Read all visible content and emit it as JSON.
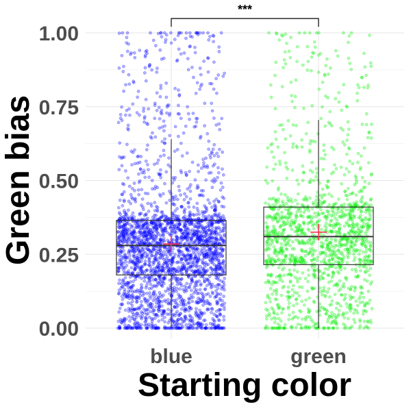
{
  "chart_data": {
    "type": "box",
    "xlabel": "Starting color",
    "ylabel": "Green bias",
    "ylim": [
      0,
      1
    ],
    "yticks": [
      "0.00",
      "0.25",
      "0.50",
      "0.75",
      "1.00"
    ],
    "categories": [
      "blue",
      "green"
    ],
    "boxes": [
      {
        "category": "blue",
        "color": "#0000ff",
        "q1": 0.18,
        "median": 0.28,
        "q3": 0.365,
        "whisker_low": 0.0,
        "whisker_high": 0.64,
        "mean": 0.285,
        "n_points": 2600
      },
      {
        "category": "green",
        "color": "#00ee00",
        "q1": 0.215,
        "median": 0.31,
        "q3": 0.41,
        "whisker_low": 0.0,
        "whisker_high": 0.705,
        "mean": 0.325,
        "n_points": 1500
      }
    ],
    "mean_marker_color": "#ff3355",
    "significance": {
      "between": [
        "blue",
        "green"
      ],
      "label": "***"
    },
    "grid": true
  }
}
